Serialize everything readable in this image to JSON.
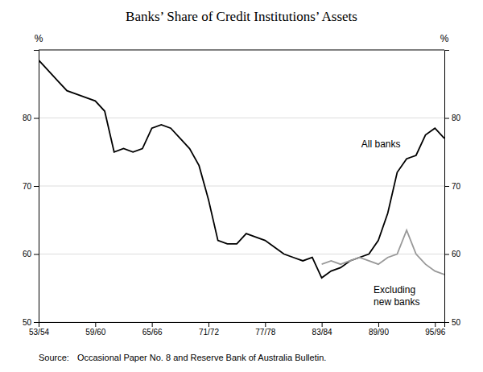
{
  "chart_data": {
    "type": "line",
    "title": "Banks’ Share of Credit Institutions’ Assets",
    "y_label": "%",
    "y2_label": "%",
    "source_label": "Source:",
    "source_body": "Occasional Paper No. 8 and Reserve Bank of Australia Bulletin.",
    "xlim": [
      53,
      96
    ],
    "xticks": [
      {
        "value": 53,
        "label": "53/54"
      },
      {
        "value": 59,
        "label": "59/60"
      },
      {
        "value": 65,
        "label": "65/66"
      },
      {
        "value": 71,
        "label": "71/72"
      },
      {
        "value": 77,
        "label": "77/78"
      },
      {
        "value": 83,
        "label": "83/84"
      },
      {
        "value": 89,
        "label": "89/90"
      },
      {
        "value": 95,
        "label": "95/96"
      }
    ],
    "ylim": [
      50,
      90
    ],
    "yticks": [
      50,
      60,
      70,
      80
    ],
    "y2lim": [
      50,
      90
    ],
    "y2ticks": [
      50,
      60,
      70,
      80
    ],
    "grid": true,
    "series": [
      {
        "color": "#000000",
        "x": [
          53,
          54,
          55,
          56,
          57,
          58,
          59,
          60,
          61,
          62,
          63,
          64,
          65,
          66,
          67,
          68,
          69,
          70,
          71,
          72,
          73,
          74,
          75,
          76,
          77,
          78,
          79,
          80,
          81,
          82,
          83,
          84,
          85,
          86,
          87,
          88,
          89,
          90,
          91,
          92,
          93,
          94,
          95,
          96
        ],
        "values": [
          88.5,
          87.0,
          85.5,
          84.0,
          83.5,
          83.0,
          82.5,
          81.0,
          75.0,
          75.5,
          75.0,
          75.5,
          78.5,
          79.0,
          78.5,
          77.0,
          75.5,
          73.0,
          68.0,
          62.0,
          61.5,
          61.5,
          63.0,
          62.5,
          62.0,
          61.0,
          60.0,
          59.5,
          59.0,
          59.5,
          56.5,
          57.5,
          58.0,
          59.0,
          59.5,
          60.0,
          62.0,
          66.0,
          72.0,
          74.0,
          74.5,
          77.5,
          78.5,
          77.0
        ]
      },
      {
        "color": "#999999",
        "x": [
          83,
          84,
          85,
          86,
          87,
          88,
          89,
          90,
          91,
          92,
          93,
          94,
          95,
          96
        ],
        "values": [
          58.5,
          59.0,
          58.5,
          59.0,
          59.5,
          59.0,
          58.5,
          59.5,
          60.0,
          63.5,
          60.0,
          58.5,
          57.5,
          57.0
        ]
      }
    ],
    "annotations": [
      {
        "text": "All banks",
        "x": 87.2,
        "y": 76.0
      },
      {
        "text": "Excluding\nnew banks",
        "x": 88.5,
        "y": 55.5
      }
    ]
  }
}
